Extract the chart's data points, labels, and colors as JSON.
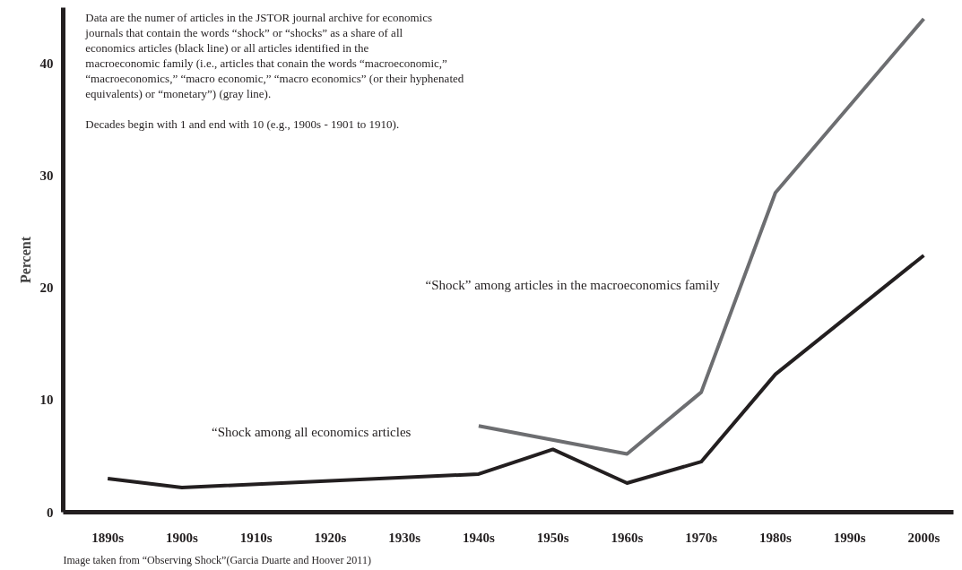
{
  "chart_data": {
    "type": "line",
    "ylabel": "Percent",
    "categories": [
      "1890s",
      "1900s",
      "1910s",
      "1920s",
      "1930s",
      "1940s",
      "1950s",
      "1960s",
      "1970s",
      "1980s",
      "1990s",
      "2000s"
    ],
    "series": [
      {
        "name": "“Shock among all economics articles",
        "color": "#231f20",
        "values": [
          3.0,
          2.2,
          null,
          null,
          null,
          3.4,
          5.6,
          2.6,
          4.5,
          12.3,
          null,
          22.9
        ]
      },
      {
        "name": "“Shock” among articles in the macroeconomics family",
        "color": "#6d6e71",
        "values": [
          null,
          null,
          null,
          null,
          null,
          7.7,
          null,
          5.2,
          10.7,
          28.5,
          null,
          44.0
        ]
      }
    ],
    "ylim": [
      0,
      45
    ],
    "yticks": [
      0,
      10,
      20,
      30,
      40
    ],
    "grid": false,
    "marker": "none",
    "line_style": "solid",
    "annotations": [
      "Data are the numer of articles in the JSTOR journal archive for economics journals that contain the words “shock” or “shocks” as a share of all economics articles (black line) or all articles identified in the macroeconomic family (i.e., articles that conain the words “macroeconomic,” “macroeconomics,” “macro economic,” “macro economics” (or their hyphenated equivalents) or “monetary”) (gray line).",
      "Decades begin with 1 and end with 10 (e.g., 1900s - 1901 to 1910).",
      "Image taken from “Observing Shock”(Garcia Duarte and Hoover 2011)"
    ]
  }
}
